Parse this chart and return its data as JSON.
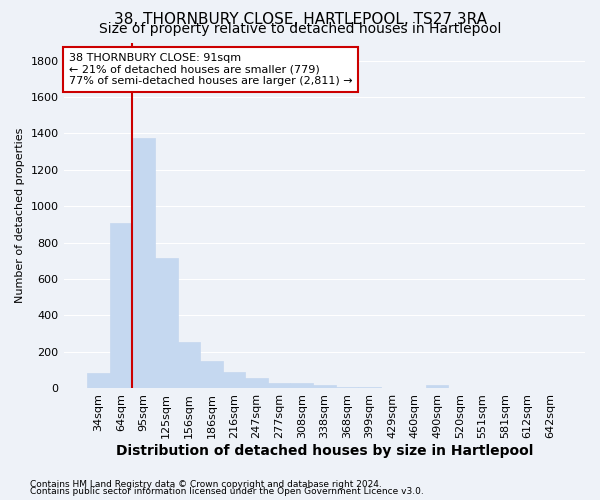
{
  "title": "38, THORNBURY CLOSE, HARTLEPOOL, TS27 3RA",
  "subtitle": "Size of property relative to detached houses in Hartlepool",
  "xlabel": "Distribution of detached houses by size in Hartlepool",
  "ylabel": "Number of detached properties",
  "categories": [
    "34sqm",
    "64sqm",
    "95sqm",
    "125sqm",
    "156sqm",
    "186sqm",
    "216sqm",
    "247sqm",
    "277sqm",
    "308sqm",
    "338sqm",
    "368sqm",
    "399sqm",
    "429sqm",
    "460sqm",
    "490sqm",
    "520sqm",
    "551sqm",
    "581sqm",
    "612sqm",
    "642sqm"
  ],
  "values": [
    83,
    910,
    1375,
    715,
    253,
    148,
    88,
    55,
    30,
    30,
    15,
    8,
    8,
    0,
    0,
    18,
    0,
    0,
    0,
    0,
    0
  ],
  "bar_color": "#c5d8f0",
  "bar_edge_color": "#c5d8f0",
  "vline_color": "#cc0000",
  "vline_x": 1.5,
  "annotation_text": "38 THORNBURY CLOSE: 91sqm\n← 21% of detached houses are smaller (779)\n77% of semi-detached houses are larger (2,811) →",
  "annotation_box_color": "#ffffff",
  "annotation_box_edge_color": "#cc0000",
  "footnote1": "Contains HM Land Registry data © Crown copyright and database right 2024.",
  "footnote2": "Contains public sector information licensed under the Open Government Licence v3.0.",
  "ylim": [
    0,
    1900
  ],
  "yticks": [
    0,
    200,
    400,
    600,
    800,
    1000,
    1200,
    1400,
    1600,
    1800
  ],
  "background_color": "#eef2f8",
  "grid_color": "#ffffff",
  "title_fontsize": 11,
  "subtitle_fontsize": 10,
  "xlabel_fontsize": 10,
  "ylabel_fontsize": 8,
  "tick_fontsize": 8,
  "annotation_fontsize": 8,
  "footnote_fontsize": 6.5
}
